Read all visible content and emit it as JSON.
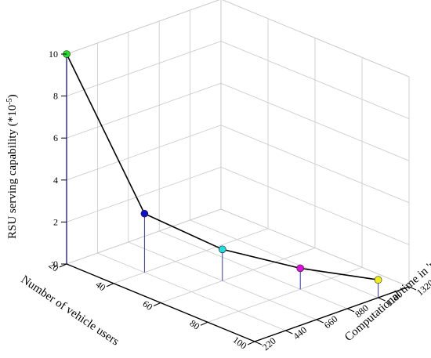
{
  "chart_data": {
    "type": "scatter",
    "projection": "3d",
    "x": {
      "label": "Number of vehicle users",
      "ticks": [
        "20",
        "40",
        "60",
        "80",
        "100"
      ],
      "values": [
        20,
        40,
        60,
        80,
        100
      ],
      "range": [
        20,
        100
      ]
    },
    "y": {
      "label": "Computational time in 'ms'",
      "ticks": [
        "220",
        "440",
        "660",
        "880",
        "1100",
        "1320"
      ],
      "values": [
        220,
        440,
        660,
        880,
        1100,
        1320
      ],
      "range": [
        220,
        1320
      ]
    },
    "z": {
      "label_main": "RSU serving capability (*10",
      "label_sup": "-5",
      "label_end": ")",
      "ticks": [
        "0",
        "2",
        "4",
        "6",
        "8",
        "10"
      ],
      "values": [
        0,
        2,
        4,
        6,
        8,
        10
      ],
      "range": [
        0,
        10
      ]
    },
    "points": [
      {
        "x": 20,
        "y": 220,
        "z": 10.0,
        "color": "#22dd22"
      },
      {
        "x": 40,
        "y": 440,
        "z": 2.8,
        "color": "#1111cc"
      },
      {
        "x": 60,
        "y": 660,
        "z": 1.5,
        "color": "#22dddd"
      },
      {
        "x": 80,
        "y": 880,
        "z": 1.0,
        "color": "#dd11dd"
      },
      {
        "x": 100,
        "y": 1100,
        "z": 0.85,
        "color": "#eeee11"
      }
    ],
    "line_color": "#000000",
    "drop_line_color": "#3333bb",
    "grid": true,
    "legend": "none"
  }
}
